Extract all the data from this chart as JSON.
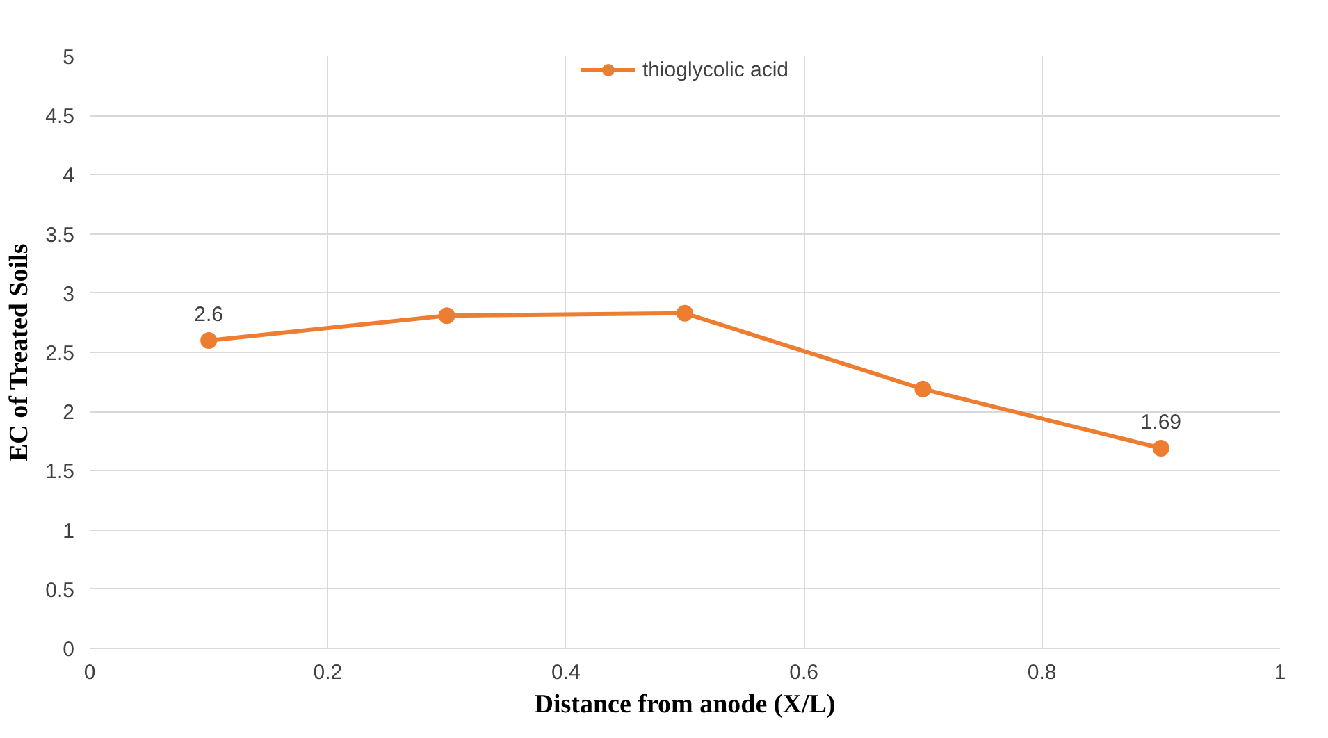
{
  "chart_data": {
    "type": "line",
    "xlabel": "Distance from anode (X/L)",
    "ylabel": "EC of Treated Soils",
    "x": [
      0.1,
      0.3,
      0.5,
      0.7,
      0.9
    ],
    "series": [
      {
        "name": "thioglycolic acid",
        "color": "#ed7d31",
        "values": [
          2.6,
          2.81,
          2.83,
          2.19,
          1.69
        ],
        "value_labels": [
          "2.6",
          null,
          null,
          null,
          "1.69"
        ]
      }
    ],
    "xlim": [
      0,
      1
    ],
    "xticks": [
      0,
      0.2,
      0.4,
      0.6,
      0.8,
      1
    ],
    "ylim": [
      0,
      5
    ],
    "yticks": [
      0,
      0.5,
      1,
      1.5,
      2,
      2.5,
      3,
      3.5,
      4,
      4.5,
      5
    ],
    "grid": true,
    "legend": "top",
    "marker": "circle",
    "line_style": "solid"
  }
}
